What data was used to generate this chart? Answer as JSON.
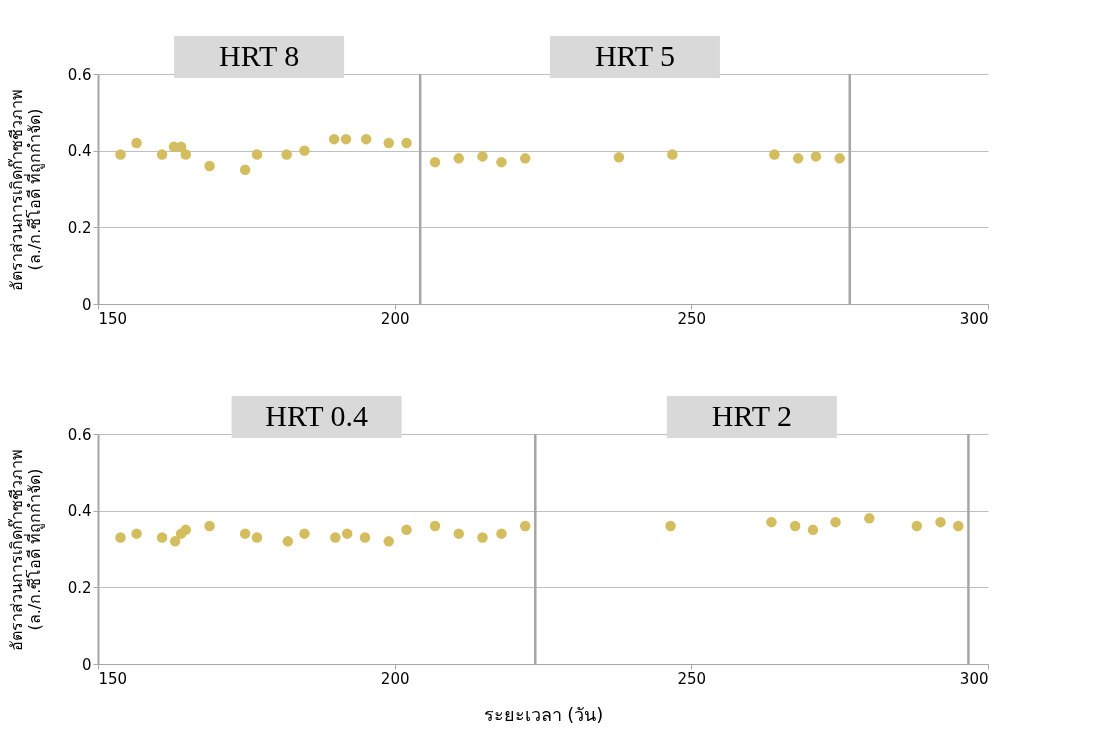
{
  "chart_data": [
    {
      "type": "scatter",
      "ylabel": "อัตราส่วนการเกิดก๊าซชีวภาพ\n(ล./ก.ซีโอดี ที่ถูกกำจัด)",
      "color": "#d4bd5e",
      "marker": "circle",
      "grid": "y",
      "x": [
        153.8,
        156.5,
        160.8,
        162.8,
        164,
        164.8,
        168.8,
        174.8,
        176.8,
        181.8,
        184.8,
        189.8,
        191.8,
        195.2,
        199,
        202,
        206.8,
        210.8,
        214.8,
        218,
        222,
        237.8,
        246.8,
        264,
        268,
        271,
        275
      ],
      "values": [
        0.39,
        0.42,
        0.39,
        0.41,
        0.41,
        0.39,
        0.36,
        0.35,
        0.39,
        0.39,
        0.4,
        0.43,
        0.43,
        0.43,
        0.42,
        0.42,
        0.37,
        0.38,
        0.385,
        0.37,
        0.38,
        0.383,
        0.39,
        0.39,
        0.38,
        0.385,
        0.38
      ],
      "xlim": [
        150,
        300
      ],
      "ylim": [
        0,
        0.6
      ],
      "xticks": [
        150,
        200,
        250,
        300
      ],
      "yticks": [
        {
          "value": 0,
          "label": "0"
        },
        0.2,
        0.4,
        0.6
      ],
      "ref_lines": [
        {
          "axis": "x",
          "value": 204.3,
          "color": "#a6a6a6"
        },
        {
          "axis": "x",
          "value": 276.7,
          "color": "#a6a6a6"
        }
      ],
      "annotations": [
        "HRT 8",
        "HRT 5"
      ]
    },
    {
      "type": "scatter",
      "ylabel": "อัตราส่วนการเกิดก๊าซชีวภาพ\n(ล./ก.ซีโอดี ที่ถูกกำจัด)",
      "xlabel": "ระยะเวลา (วัน)",
      "color": "#d4bd5e",
      "marker": "circle",
      "grid": "y",
      "x": [
        153.8,
        156.5,
        160.8,
        163,
        164,
        164.8,
        168.8,
        174.8,
        176.8,
        182,
        184.8,
        190,
        192,
        195,
        199,
        202,
        206.8,
        210.8,
        214.8,
        218,
        222,
        246.5,
        263.5,
        267.5,
        270.5,
        274.3,
        280,
        288,
        292,
        295
      ],
      "values": [
        0.33,
        0.34,
        0.33,
        0.32,
        0.34,
        0.35,
        0.36,
        0.34,
        0.33,
        0.32,
        0.34,
        0.33,
        0.34,
        0.33,
        0.32,
        0.35,
        0.36,
        0.34,
        0.33,
        0.34,
        0.36,
        0.36,
        0.37,
        0.36,
        0.35,
        0.37,
        0.38,
        0.36,
        0.37,
        0.36
      ],
      "xlim": [
        150,
        300
      ],
      "ylim": [
        0,
        0.6
      ],
      "xticks": [
        150,
        200,
        250,
        300
      ],
      "yticks": [
        {
          "value": 0,
          "label": "0"
        },
        0.2,
        0.4,
        0.6
      ],
      "ref_lines": [
        {
          "axis": "x",
          "value": 223.7,
          "color": "#a6a6a6"
        },
        {
          "axis": "x",
          "value": 296.7,
          "color": "#a6a6a6"
        }
      ],
      "annotations": [
        "HRT 0.4",
        "HRT 2"
      ]
    }
  ]
}
